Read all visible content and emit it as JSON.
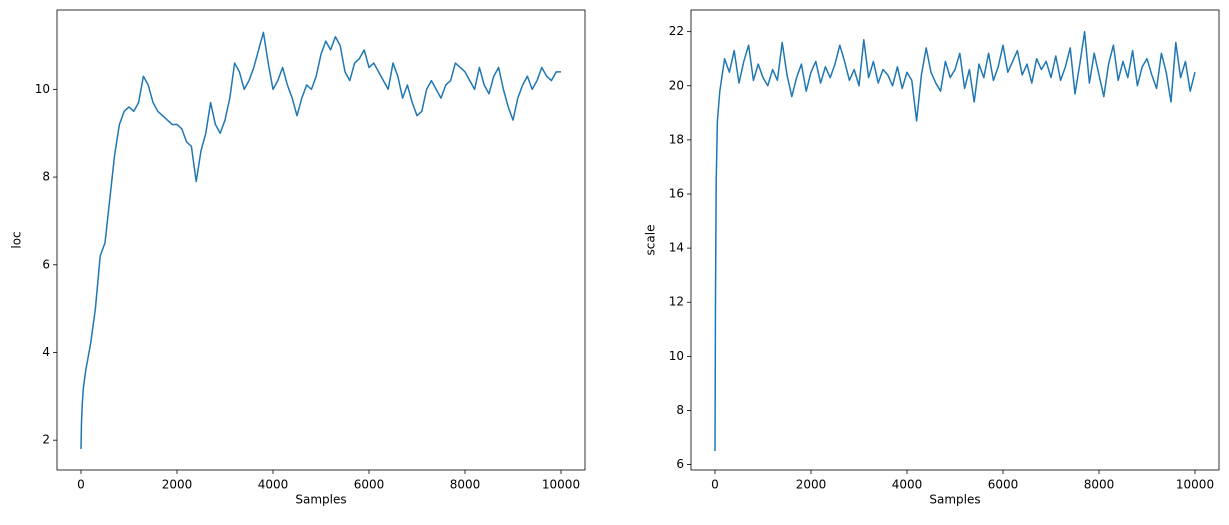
{
  "chart_data": [
    {
      "type": "line",
      "x_label": "Samples",
      "y_label": "loc",
      "color": "#1f77b4",
      "x": [
        0,
        10,
        25,
        50,
        100,
        200,
        300,
        400,
        500,
        600,
        700,
        800,
        900,
        1000,
        1100,
        1200,
        1300,
        1400,
        1500,
        1600,
        1700,
        1800,
        1900,
        2000,
        2100,
        2200,
        2300,
        2400,
        2500,
        2600,
        2700,
        2800,
        2900,
        3000,
        3100,
        3200,
        3300,
        3400,
        3500,
        3600,
        3700,
        3800,
        3900,
        4000,
        4100,
        4200,
        4300,
        4400,
        4500,
        4600,
        4700,
        4800,
        4900,
        5000,
        5100,
        5200,
        5300,
        5400,
        5500,
        5600,
        5700,
        5800,
        5900,
        6000,
        6100,
        6200,
        6300,
        6400,
        6500,
        6600,
        6700,
        6800,
        6900,
        7000,
        7100,
        7200,
        7300,
        7400,
        7500,
        7600,
        7700,
        7800,
        7900,
        8000,
        8100,
        8200,
        8300,
        8400,
        8500,
        8600,
        8700,
        8800,
        8900,
        9000,
        9100,
        9200,
        9300,
        9400,
        9500,
        9600,
        9700,
        9800,
        9900,
        10000
      ],
      "values": [
        1.8,
        2.4,
        2.8,
        3.2,
        3.6,
        4.2,
        5.0,
        6.2,
        6.5,
        7.5,
        8.5,
        9.2,
        9.5,
        9.6,
        9.5,
        9.7,
        10.3,
        10.1,
        9.7,
        9.5,
        9.4,
        9.3,
        9.2,
        9.2,
        9.1,
        8.8,
        8.7,
        7.9,
        8.6,
        9.0,
        9.7,
        9.2,
        9.0,
        9.3,
        9.8,
        10.6,
        10.4,
        10.0,
        10.2,
        10.5,
        10.9,
        11.3,
        10.6,
        10.0,
        10.2,
        10.5,
        10.1,
        9.8,
        9.4,
        9.8,
        10.1,
        10.0,
        10.3,
        10.8,
        11.1,
        10.9,
        11.2,
        11.0,
        10.4,
        10.2,
        10.6,
        10.7,
        10.9,
        10.5,
        10.6,
        10.4,
        10.2,
        10.0,
        10.6,
        10.3,
        9.8,
        10.1,
        9.7,
        9.4,
        9.5,
        10.0,
        10.2,
        10.0,
        9.8,
        10.1,
        10.2,
        10.6,
        10.5,
        10.4,
        10.2,
        10.0,
        10.5,
        10.1,
        9.9,
        10.3,
        10.5,
        10.0,
        9.6,
        9.3,
        9.8,
        10.1,
        10.3,
        10.0,
        10.2,
        10.5,
        10.3,
        10.2,
        10.4,
        10.4
      ],
      "xlim": [
        -500,
        10500
      ],
      "xticks": [
        0,
        2000,
        4000,
        6000,
        8000,
        10000
      ],
      "ylim": [
        1.32,
        11.81
      ],
      "yticks": [
        2,
        4,
        6,
        8,
        10
      ]
    },
    {
      "type": "line",
      "x_label": "Samples",
      "y_label": "scale",
      "color": "#1f77b4",
      "x": [
        0,
        10,
        25,
        50,
        100,
        200,
        300,
        400,
        500,
        600,
        700,
        800,
        900,
        1000,
        1100,
        1200,
        1300,
        1400,
        1500,
        1600,
        1700,
        1800,
        1900,
        2000,
        2100,
        2200,
        2300,
        2400,
        2500,
        2600,
        2700,
        2800,
        2900,
        3000,
        3100,
        3200,
        3300,
        3400,
        3500,
        3600,
        3700,
        3800,
        3900,
        4000,
        4100,
        4200,
        4300,
        4400,
        4500,
        4600,
        4700,
        4800,
        4900,
        5000,
        5100,
        5200,
        5300,
        5400,
        5500,
        5600,
        5700,
        5800,
        5900,
        6000,
        6100,
        6200,
        6300,
        6400,
        6500,
        6600,
        6700,
        6800,
        6900,
        7000,
        7100,
        7200,
        7300,
        7400,
        7500,
        7600,
        7700,
        7800,
        7900,
        8000,
        8100,
        8200,
        8300,
        8400,
        8500,
        8600,
        8700,
        8800,
        8900,
        9000,
        9100,
        9200,
        9300,
        9400,
        9500,
        9600,
        9700,
        9800,
        9900,
        10000
      ],
      "values": [
        6.5,
        12.0,
        16.5,
        18.7,
        19.8,
        21.0,
        20.5,
        21.3,
        20.1,
        20.9,
        21.5,
        20.2,
        20.8,
        20.3,
        20.0,
        20.6,
        20.2,
        21.6,
        20.4,
        19.6,
        20.3,
        20.8,
        19.8,
        20.5,
        20.9,
        20.1,
        20.7,
        20.3,
        20.8,
        21.5,
        20.9,
        20.2,
        20.6,
        20.0,
        21.7,
        20.3,
        20.9,
        20.1,
        20.6,
        20.4,
        20.0,
        20.7,
        19.9,
        20.5,
        20.2,
        18.7,
        20.4,
        21.4,
        20.5,
        20.1,
        19.8,
        20.9,
        20.3,
        20.6,
        21.2,
        19.9,
        20.6,
        19.4,
        20.8,
        20.3,
        21.2,
        20.2,
        20.7,
        21.5,
        20.5,
        20.9,
        21.3,
        20.4,
        20.8,
        20.1,
        21.0,
        20.6,
        20.9,
        20.3,
        21.1,
        20.2,
        20.7,
        21.4,
        19.7,
        20.8,
        22.0,
        20.1,
        21.2,
        20.4,
        19.6,
        20.8,
        21.5,
        20.2,
        20.9,
        20.3,
        21.3,
        20.0,
        20.7,
        21.0,
        20.4,
        19.9,
        21.2,
        20.5,
        19.4,
        21.6,
        20.3,
        20.9,
        19.8,
        20.5
      ],
      "xlim": [
        -500,
        10500
      ],
      "xticks": [
        0,
        2000,
        4000,
        6000,
        8000,
        10000
      ],
      "ylim": [
        5.8,
        22.8
      ],
      "yticks": [
        6,
        8,
        10,
        12,
        14,
        16,
        18,
        20,
        22
      ]
    }
  ]
}
